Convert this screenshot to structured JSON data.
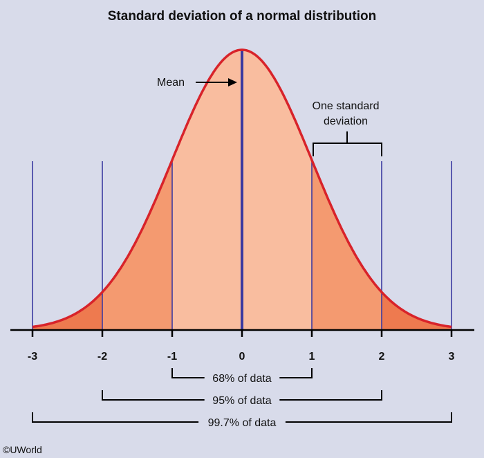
{
  "title": "Standard deviation of a normal distribution",
  "annotations": {
    "mean": "Mean",
    "one_sd_line1": "One standard",
    "one_sd_line2": "deviation"
  },
  "axis": {
    "ticks": [
      "-3",
      "-2",
      "-1",
      "0",
      "1",
      "2",
      "3"
    ]
  },
  "ranges": [
    {
      "label": "68% of data",
      "from": -1,
      "to": 1
    },
    {
      "label": "95% of data",
      "from": -2,
      "to": 2
    },
    {
      "label": "99.7% of data",
      "from": -3,
      "to": 3
    }
  ],
  "copyright": "©UWorld",
  "colors": {
    "background": "#d8dbea",
    "curve_line": "#d8232a",
    "inner_fill": "#f9bd9f",
    "middle_fill": "#f49a70",
    "outer_fill": "#ee7a4f",
    "sd_lines": "#3b3aa0",
    "mean_line": "#3b3aa0"
  }
}
